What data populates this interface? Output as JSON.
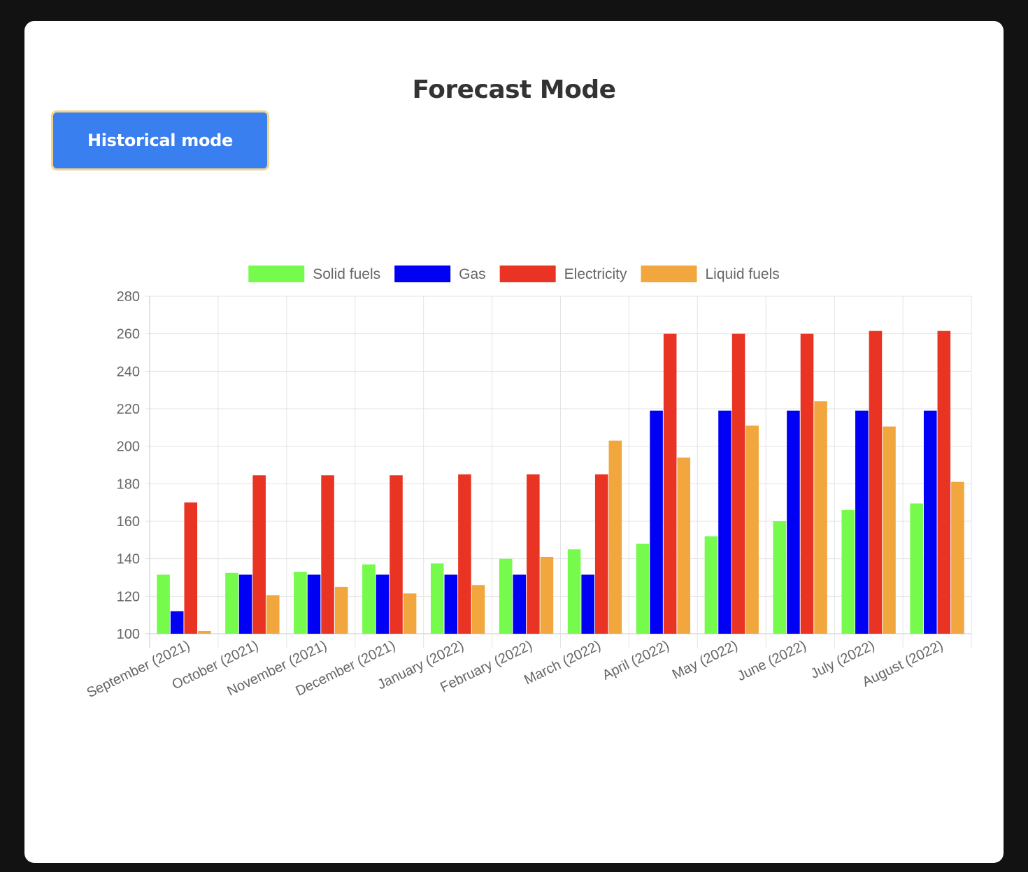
{
  "page": {
    "title": "Forecast Mode"
  },
  "toolbar": {
    "mode_button_label": "Historical mode"
  },
  "colors": {
    "background": "#121212",
    "card": "#ffffff",
    "button": "#3a7ff0",
    "button_border": "#f2d48a",
    "grid": "#e3e3e3",
    "axis": "#c8c8c8",
    "text": "#666666"
  },
  "chart_data": {
    "type": "bar",
    "title": "",
    "xlabel": "",
    "ylabel": "",
    "ylim": [
      100,
      280
    ],
    "yticks": [
      100,
      120,
      140,
      160,
      180,
      200,
      220,
      240,
      260,
      280
    ],
    "grid": true,
    "legend_position": "top-center",
    "categories": [
      "September (2021)",
      "October (2021)",
      "November (2021)",
      "December (2021)",
      "January (2022)",
      "February (2022)",
      "March (2022)",
      "April (2022)",
      "May (2022)",
      "June (2022)",
      "July (2022)",
      "August (2022)"
    ],
    "series": [
      {
        "name": "Solid fuels",
        "color": "#76fa4c",
        "values": [
          131.5,
          132.5,
          133,
          137,
          137.5,
          140,
          145,
          148,
          152,
          160,
          166,
          169.5
        ]
      },
      {
        "name": "Gas",
        "color": "#0000f5",
        "values": [
          112,
          131.5,
          131.5,
          131.5,
          131.5,
          131.5,
          131.5,
          219,
          219,
          219,
          219,
          219
        ]
      },
      {
        "name": "Electricity",
        "color": "#e93424",
        "values": [
          170,
          184.5,
          184.5,
          184.5,
          185,
          185,
          185,
          260,
          260,
          260,
          261.5,
          261.5
        ]
      },
      {
        "name": "Liquid fuels",
        "color": "#f1a73e",
        "values": [
          101.5,
          120.5,
          125,
          121.5,
          126,
          141,
          203,
          194,
          211,
          224,
          210.5,
          181
        ]
      }
    ]
  }
}
